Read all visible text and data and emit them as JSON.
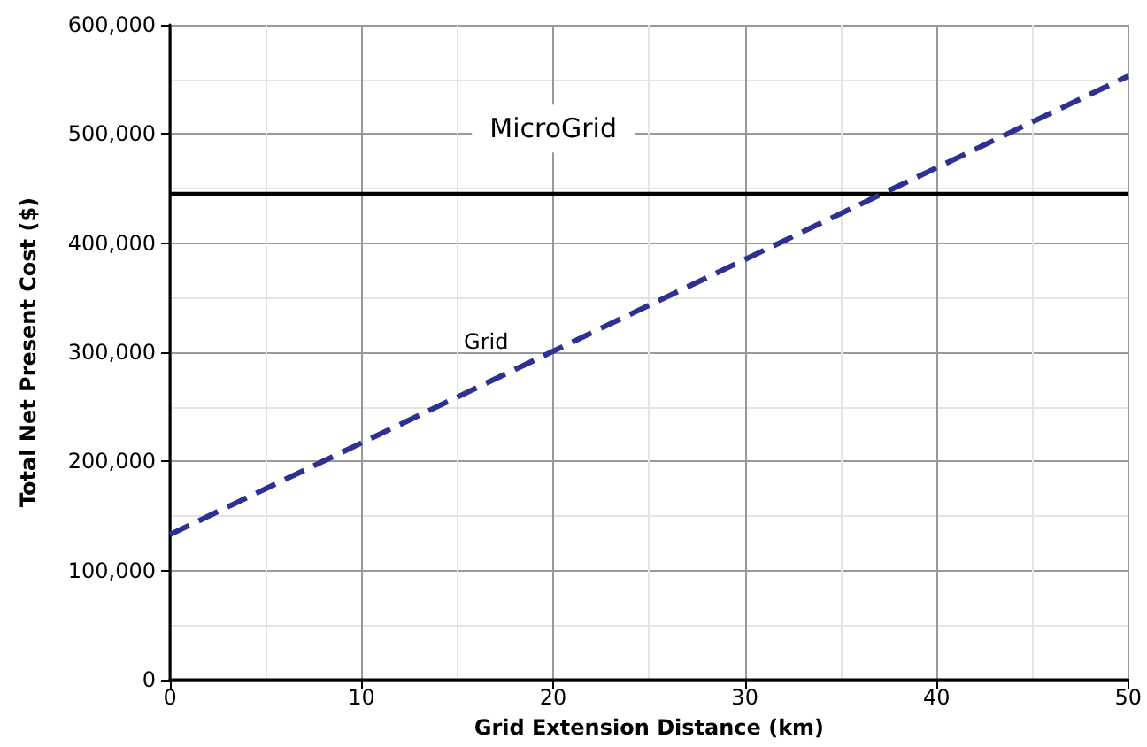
{
  "chart_data": {
    "type": "line",
    "xlabel": "Grid Extension Distance (km)",
    "ylabel": "Total Net Present Cost ($)",
    "x": [
      0,
      50
    ],
    "series": [
      {
        "name": "MicroGrid",
        "color": "#000000",
        "values": [
          445000,
          445000
        ],
        "line_style": "solid"
      },
      {
        "name": "Grid",
        "color": "#2e3192",
        "values": [
          133000,
          553000
        ],
        "line_style": "dashed"
      }
    ],
    "xlim": [
      0,
      50
    ],
    "xticks": [
      0,
      10,
      20,
      30,
      40,
      50
    ],
    "ylim": [
      0,
      600000
    ],
    "yticks": [
      0,
      {
        "value": 100000,
        "label": "100,000"
      },
      {
        "value": 200000,
        "label": "200,000"
      },
      {
        "value": 300000,
        "label": "300,000"
      },
      {
        "value": 400000,
        "label": "400,000"
      },
      {
        "value": 500000,
        "label": "500,000"
      },
      {
        "value": 600000,
        "label": "600,000"
      }
    ],
    "grid": true,
    "legend": false,
    "marker": "none"
  }
}
